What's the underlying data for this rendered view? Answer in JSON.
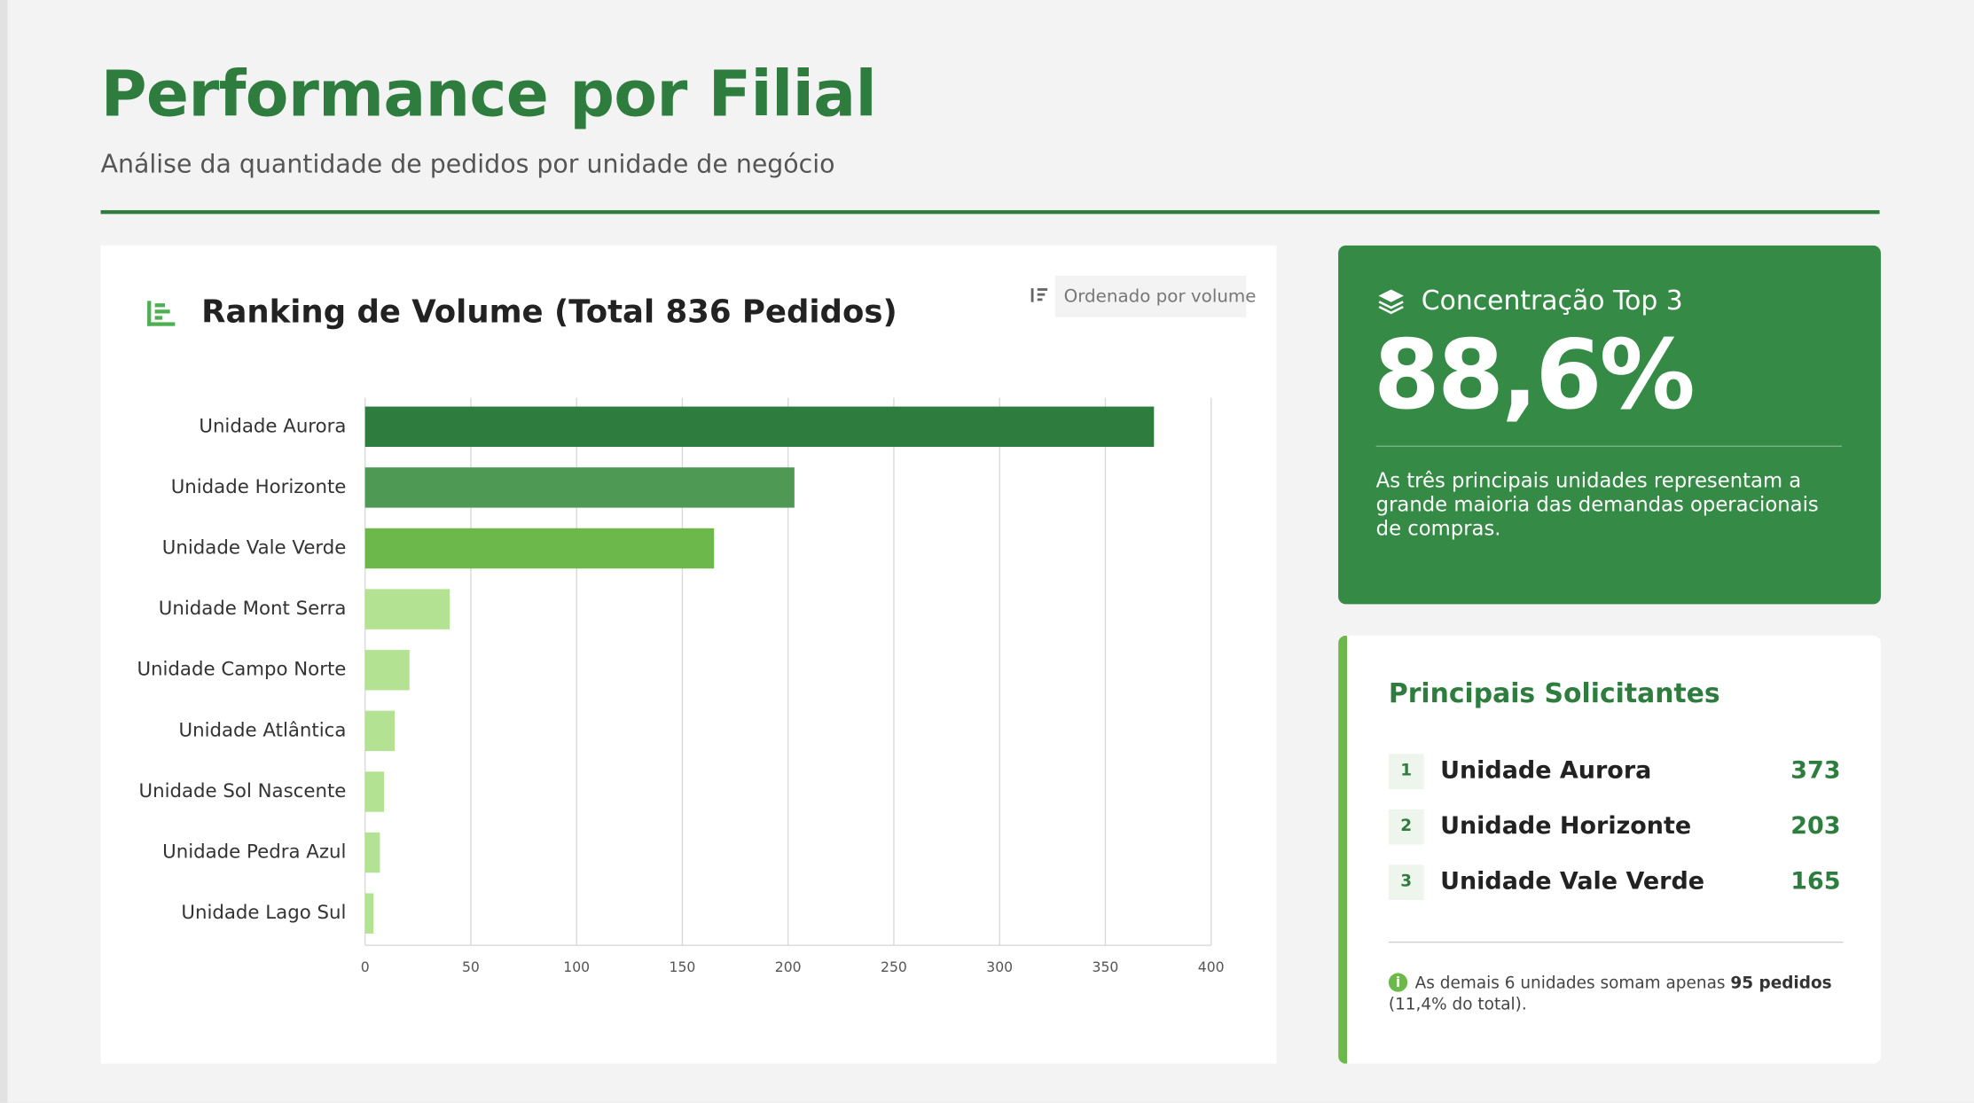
{
  "header": {
    "title": "Performance por Filial",
    "subtitle": "Análise da quantidade de pedidos por unidade de negócio"
  },
  "chart_data": {
    "type": "bar",
    "orientation": "horizontal",
    "title": "Ranking de Volume (Total 836 Pedidos)",
    "sort_badge": "Ordenado por volume",
    "categories": [
      "Unidade Aurora",
      "Unidade Horizonte",
      "Unidade Vale Verde",
      "Unidade Mont Serra",
      "Unidade Campo Norte",
      "Unidade Atlântica",
      "Unidade Sol Nascente",
      "Unidade Pedra Azul",
      "Unidade Lago Sul"
    ],
    "values": [
      373,
      203,
      165,
      40,
      21,
      14,
      9,
      7,
      4
    ],
    "colors": [
      "#2e7d3e",
      "#4e9a55",
      "#6db84b",
      "#b3e392",
      "#b3e392",
      "#b3e392",
      "#b3e392",
      "#b3e392",
      "#b3e392"
    ],
    "xlim": [
      0,
      400
    ],
    "xticks": [
      0,
      50,
      100,
      150,
      200,
      250,
      300,
      350,
      400
    ],
    "grid": true
  },
  "kpi": {
    "label": "Concentração Top 3",
    "value": "88,6%",
    "description": "As três principais unidades representam a grande maioria das demandas operacionais de compras."
  },
  "top_list": {
    "title": "Principais Solicitantes",
    "items": [
      {
        "rank": 1,
        "name": "Unidade Aurora",
        "value": 373
      },
      {
        "rank": 2,
        "name": "Unidade Horizonte",
        "value": 203
      },
      {
        "rank": 3,
        "name": "Unidade Vale Verde",
        "value": 165
      }
    ],
    "note": {
      "text_before": "As demais 6 unidades somam apenas",
      "bold": "95 pedidos",
      "text_after": "(11,4% do total)."
    }
  }
}
